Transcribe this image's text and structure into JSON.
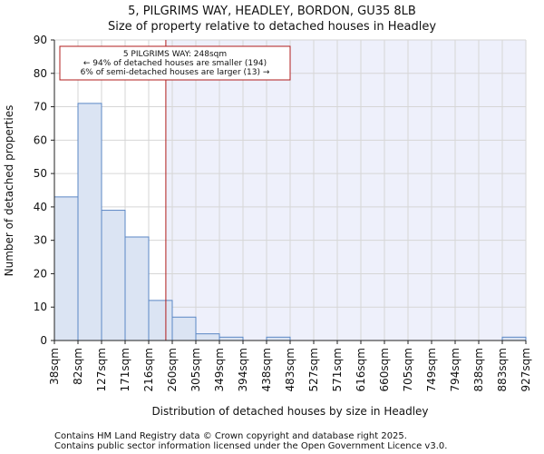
{
  "chart_data": {
    "type": "bar",
    "title": "5, PILGRIMS WAY, HEADLEY, BORDON, GU35 8LB",
    "subtitle": "Size of property relative to detached houses in Headley",
    "xlabel": "Distribution of detached houses by size in Headley",
    "ylabel": "Number of detached properties",
    "x_tick_labels": [
      "38sqm",
      "82sqm",
      "127sqm",
      "171sqm",
      "216sqm",
      "260sqm",
      "305sqm",
      "349sqm",
      "394sqm",
      "438sqm",
      "483sqm",
      "527sqm",
      "571sqm",
      "616sqm",
      "660sqm",
      "705sqm",
      "749sqm",
      "794sqm",
      "838sqm",
      "883sqm",
      "927sqm"
    ],
    "values": [
      43,
      71,
      39,
      31,
      12,
      7,
      2,
      1,
      0,
      1,
      0,
      0,
      0,
      0,
      0,
      0,
      0,
      0,
      0,
      1
    ],
    "ylim": [
      0,
      90
    ],
    "y_ticks": [
      0,
      10,
      20,
      30,
      40,
      50,
      60,
      70,
      80,
      90
    ],
    "grid": true,
    "marker": {
      "value_sqm": 248,
      "line1": "5 PILGRIMS WAY: 248sqm",
      "line2": "← 94% of detached houses are smaller (194)",
      "line3": "6% of semi-detached houses are larger (13) →"
    },
    "colors": {
      "bar_fill": "#dbe4f3",
      "bar_stroke": "#5b87c5",
      "shade": "#eef0fb",
      "marker": "#b01c1c",
      "grid": "#d6d6d6"
    }
  },
  "footer": {
    "line1": "Contains HM Land Registry data © Crown copyright and database right 2025.",
    "line2": "Contains public sector information licensed under the Open Government Licence v3.0."
  }
}
